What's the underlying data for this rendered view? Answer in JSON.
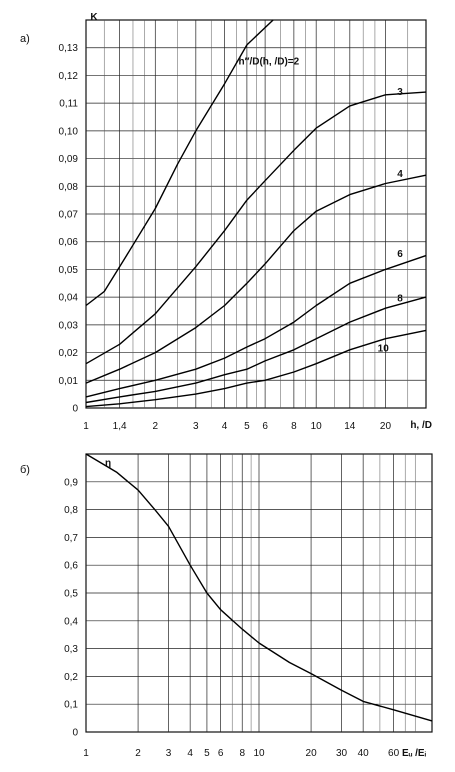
{
  "chart_data": [
    {
      "type": "line",
      "panel_label": "а)",
      "ylabel": "K",
      "xlabel": "h, /D",
      "x_scale": "log",
      "xlim": [
        1,
        30
      ],
      "ylim": [
        0,
        0.14
      ],
      "grid": true,
      "x_ticks": [
        {
          "v": 1,
          "t": "1"
        },
        {
          "v": 1.4,
          "t": "1,4"
        },
        {
          "v": 2,
          "t": "2"
        },
        {
          "v": 3,
          "t": "3"
        },
        {
          "v": 4,
          "t": "4"
        },
        {
          "v": 5,
          "t": "5"
        },
        {
          "v": 6,
          "t": "6"
        },
        {
          "v": 8,
          "t": "8"
        },
        {
          "v": 10,
          "t": "10"
        },
        {
          "v": 14,
          "t": "14"
        },
        {
          "v": 20,
          "t": "20"
        }
      ],
      "x_minor": [
        1.2,
        1.6,
        1.8,
        2.5,
        3.5,
        4.5,
        5.5,
        7,
        9,
        12,
        16,
        18,
        25,
        30
      ],
      "y_ticks": [
        {
          "v": 0,
          "t": "0"
        },
        {
          "v": 0.01,
          "t": "0,01"
        },
        {
          "v": 0.02,
          "t": "0,02"
        },
        {
          "v": 0.03,
          "t": "0,03"
        },
        {
          "v": 0.04,
          "t": "0,04"
        },
        {
          "v": 0.05,
          "t": "0,05"
        },
        {
          "v": 0.06,
          "t": "0,06"
        },
        {
          "v": 0.07,
          "t": "0,07"
        },
        {
          "v": 0.08,
          "t": "0,08"
        },
        {
          "v": 0.09,
          "t": "0,09"
        },
        {
          "v": 0.1,
          "t": "0,10"
        },
        {
          "v": 0.11,
          "t": "0,11"
        },
        {
          "v": 0.12,
          "t": "0,12"
        },
        {
          "v": 0.13,
          "t": "0,13"
        }
      ],
      "series": [
        {
          "name": "h″/D(h, /D)=2",
          "label_at": [
            4.6,
            0.125
          ],
          "x": [
            1,
            1.2,
            1.5,
            2,
            2.5,
            3,
            4,
            5,
            6.5
          ],
          "y": [
            0.037,
            0.042,
            0.055,
            0.072,
            0.088,
            0.1,
            0.117,
            0.131,
            0.142
          ]
        },
        {
          "name": "3",
          "label_at": [
            22.5,
            0.114
          ],
          "x": [
            1,
            1.4,
            2,
            3,
            4,
            5,
            6,
            8,
            10,
            14,
            20,
            30
          ],
          "y": [
            0.016,
            0.023,
            0.034,
            0.051,
            0.064,
            0.075,
            0.082,
            0.093,
            0.101,
            0.109,
            0.113,
            0.114
          ]
        },
        {
          "name": "4",
          "label_at": [
            22.5,
            0.0845
          ],
          "x": [
            1,
            1.4,
            2,
            3,
            4,
            5,
            6,
            8,
            10,
            14,
            20,
            30
          ],
          "y": [
            0.009,
            0.014,
            0.02,
            0.029,
            0.037,
            0.045,
            0.052,
            0.064,
            0.071,
            0.077,
            0.081,
            0.084
          ]
        },
        {
          "name": "6",
          "label_at": [
            22.5,
            0.0555
          ],
          "x": [
            1,
            1.4,
            2,
            3,
            4,
            5,
            6,
            8,
            10,
            14,
            20,
            30
          ],
          "y": [
            0.004,
            0.007,
            0.01,
            0.014,
            0.018,
            0.022,
            0.025,
            0.031,
            0.037,
            0.045,
            0.05,
            0.055
          ]
        },
        {
          "name": "8",
          "label_at": [
            22.5,
            0.0395
          ],
          "x": [
            1,
            1.4,
            2,
            3,
            4,
            5,
            6,
            8,
            10,
            14,
            20,
            30
          ],
          "y": [
            0.002,
            0.004,
            0.006,
            0.009,
            0.012,
            0.014,
            0.017,
            0.021,
            0.025,
            0.031,
            0.036,
            0.04
          ]
        },
        {
          "name": "10",
          "label_at": [
            18.5,
            0.0215
          ],
          "x": [
            1,
            1.4,
            2,
            3,
            4,
            5,
            6,
            8,
            10,
            14,
            20,
            30
          ],
          "y": [
            0.0005,
            0.0015,
            0.003,
            0.005,
            0.007,
            0.009,
            0.01,
            0.013,
            0.016,
            0.021,
            0.025,
            0.028
          ]
        }
      ]
    },
    {
      "type": "line",
      "panel_label": "б)",
      "ylabel": "η",
      "xlabel": "Eᵤ /Eᵢ",
      "x_scale": "log",
      "xlim": [
        1,
        100
      ],
      "ylim": [
        0,
        1.0
      ],
      "grid": true,
      "x_ticks": [
        {
          "v": 1,
          "t": "1"
        },
        {
          "v": 2,
          "t": "2"
        },
        {
          "v": 3,
          "t": "3"
        },
        {
          "v": 4,
          "t": "4"
        },
        {
          "v": 5,
          "t": "5"
        },
        {
          "v": 6,
          "t": "6"
        },
        {
          "v": 8,
          "t": "8"
        },
        {
          "v": 10,
          "t": "10"
        },
        {
          "v": 20,
          "t": "20"
        },
        {
          "v": 30,
          "t": "30"
        },
        {
          "v": 40,
          "t": "40"
        },
        {
          "v": 60,
          "t": "60"
        }
      ],
      "x_minor": [
        7,
        9,
        50,
        70,
        80,
        100
      ],
      "y_ticks": [
        {
          "v": 0,
          "t": "0"
        },
        {
          "v": 0.1,
          "t": "0,1"
        },
        {
          "v": 0.2,
          "t": "0,2"
        },
        {
          "v": 0.3,
          "t": "0,3"
        },
        {
          "v": 0.4,
          "t": "0,4"
        },
        {
          "v": 0.5,
          "t": "0,5"
        },
        {
          "v": 0.6,
          "t": "0,6"
        },
        {
          "v": 0.7,
          "t": "0,7"
        },
        {
          "v": 0.8,
          "t": "0,8"
        },
        {
          "v": 0.9,
          "t": "0,9"
        }
      ],
      "series": [
        {
          "name": "",
          "x": [
            1,
            1.5,
            2,
            2.5,
            3,
            4,
            5,
            6,
            8,
            10,
            15,
            20,
            30,
            40,
            60,
            100
          ],
          "y": [
            1.0,
            0.935,
            0.87,
            0.8,
            0.74,
            0.6,
            0.5,
            0.44,
            0.37,
            0.32,
            0.25,
            0.21,
            0.15,
            0.11,
            0.08,
            0.04
          ]
        }
      ]
    }
  ]
}
